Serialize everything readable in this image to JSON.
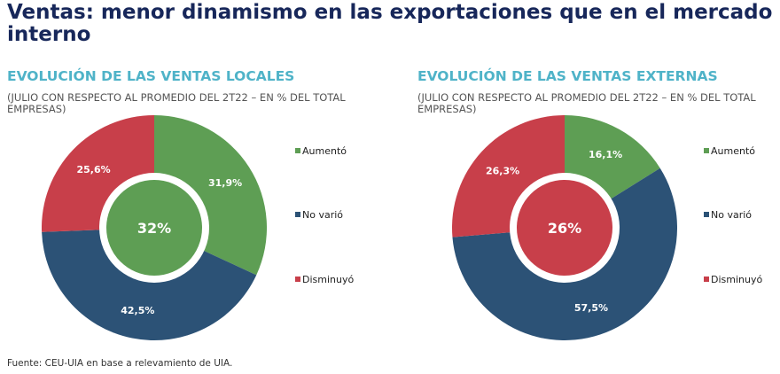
{
  "title": "Ventas: menor dinamismo en las exportaciones que en el mercado interno",
  "source": "Fuente: CEU-UIA en base a relevamiento de UIA.",
  "colors": {
    "Aumentó": "#5e9e54",
    "No varió": "#2c5276",
    "Disminuyó": "#c83f4a"
  },
  "chart_data": [
    {
      "type": "pie",
      "title": "EVOLUCIÓN DE LAS VENTAS LOCALES",
      "subtitle": "(JULIO CON RESPECTO AL PROMEDIO DEL 2T22 – EN % DEL TOTAL EMPRESAS)",
      "categories": [
        "Aumentó",
        "No varió",
        "Disminuyó"
      ],
      "values": [
        31.9,
        42.5,
        25.6
      ],
      "data_labels": [
        "31,9%",
        "42,5%",
        "25,6%"
      ],
      "center_label": "32%",
      "center_category": "Aumentó",
      "legend": "right"
    },
    {
      "type": "pie",
      "title": "EVOLUCIÓN DE LAS VENTAS EXTERNAS",
      "subtitle": "(JULIO CON RESPECTO AL PROMEDIO DEL 2T22 – EN % DEL TOTAL EMPRESAS)",
      "categories": [
        "Aumentó",
        "No varió",
        "Disminuyó"
      ],
      "values": [
        16.1,
        57.5,
        26.3
      ],
      "data_labels": [
        "16,1%",
        "57,5%",
        "26,3%"
      ],
      "center_label": "26%",
      "center_category": "Disminuyó",
      "legend": "right"
    }
  ]
}
